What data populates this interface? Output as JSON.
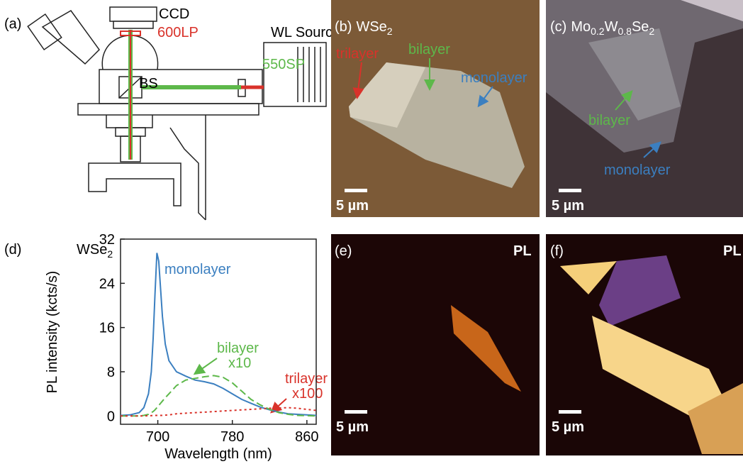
{
  "panels": {
    "a": {
      "label": "(a)",
      "ccd": "CCD",
      "longpass": "600LP",
      "source": "WL Source",
      "shortpass": "550SP",
      "splitter": "BS"
    },
    "b": {
      "label": "(b)",
      "title": [
        "WSe",
        "2"
      ],
      "trilayer": "trilayer",
      "bilayer": "bilayer",
      "monolayer": "monolayer",
      "scale": "5 µm"
    },
    "c": {
      "label": "(c)",
      "title": [
        "Mo",
        "0.2",
        "W",
        "0.8",
        "Se",
        "2"
      ],
      "bilayer": "bilayer",
      "monolayer": "monolayer",
      "scale": "5 µm"
    },
    "e": {
      "label": "(e)",
      "mode": "PL",
      "scale": "5 µm"
    },
    "f": {
      "label": "(f)",
      "mode": "PL",
      "scale": "5 µm"
    }
  },
  "chart_data": {
    "type": "line",
    "label": "(d)",
    "title": [
      "WSe",
      "2"
    ],
    "xlabel": "Wavelength (nm)",
    "ylabel": "PL intensity (kcts/s)",
    "x": [
      660,
      670,
      680,
      685,
      690,
      693,
      695,
      697,
      699,
      701,
      703,
      705,
      708,
      712,
      720,
      730,
      740,
      750,
      760,
      770,
      780,
      790,
      800,
      810,
      820,
      830,
      840,
      850,
      860,
      870
    ],
    "series": [
      {
        "name": "monolayer",
        "color": "#3b7fc0",
        "style": "solid",
        "values": [
          0.1,
          0.2,
          0.6,
          1.5,
          4,
          8,
          14,
          22,
          29.5,
          28,
          23,
          18,
          13,
          10,
          8,
          7.2,
          6.5,
          6.2,
          5.8,
          5,
          4,
          3,
          2.3,
          1.6,
          1.1,
          0.7,
          0.4,
          0.3,
          0.2,
          0.1
        ]
      },
      {
        "name": "bilayer",
        "multiplier": "x10",
        "color": "#5db84a",
        "style": "dashed",
        "values": [
          0,
          0,
          0,
          0.1,
          0.3,
          0.6,
          0.8,
          1.1,
          1.5,
          1.9,
          2.3,
          2.7,
          3.3,
          4,
          5.5,
          6.5,
          6.8,
          7.1,
          7.3,
          7,
          6,
          4.5,
          3,
          2,
          1.2,
          0.6,
          0.3,
          0.1,
          0.05,
          0
        ]
      },
      {
        "name": "trilayer",
        "multiplier": "x100",
        "color": "#d9322a",
        "style": "dotted",
        "values": [
          0,
          0,
          0,
          0,
          0.05,
          0.05,
          0.1,
          0.1,
          0.1,
          0.1,
          0.1,
          0.1,
          0.15,
          0.2,
          0.4,
          0.5,
          0.6,
          0.7,
          0.8,
          0.9,
          1,
          1.1,
          1.2,
          1.3,
          1.4,
          1.45,
          1.5,
          1.4,
          1.2,
          1
        ]
      }
    ],
    "xlim": [
      660,
      870
    ],
    "ylim": [
      -1.5,
      32
    ],
    "xticks": [
      700,
      780,
      860
    ],
    "yticks": [
      0,
      8,
      16,
      24,
      32
    ]
  }
}
